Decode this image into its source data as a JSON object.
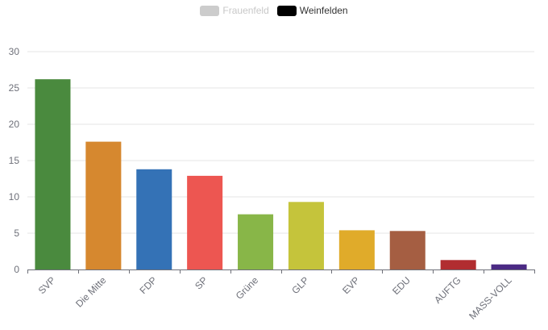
{
  "legend": [
    {
      "label": "Frauenfeld",
      "color": "#cccccc",
      "state": "inactive"
    },
    {
      "label": "Weinfelden",
      "color": "#000000",
      "state": "active"
    }
  ],
  "chart_data": {
    "type": "bar",
    "categories": [
      "SVP",
      "Die Mitte",
      "FDP",
      "SP",
      "Grüne",
      "GLP",
      "EVP",
      "EDU",
      "AUFTG",
      "MASS-VOLL"
    ],
    "series": [
      {
        "name": "Weinfelden",
        "values": [
          26.2,
          17.6,
          13.8,
          12.9,
          7.6,
          9.3,
          5.4,
          5.3,
          1.3,
          0.7
        ],
        "colors": [
          "#4a8a3e",
          "#d6882f",
          "#3472b6",
          "#ed5651",
          "#88b648",
          "#c5c43b",
          "#e0ab2a",
          "#a55e42",
          "#b12d30",
          "#4b2a84"
        ]
      }
    ],
    "y_ticks": [
      0,
      5,
      10,
      15,
      20,
      25,
      30
    ],
    "ylim": [
      0,
      30
    ],
    "grid": true,
    "legend_position": "top-center",
    "title": "",
    "xlabel": "",
    "ylabel": ""
  }
}
